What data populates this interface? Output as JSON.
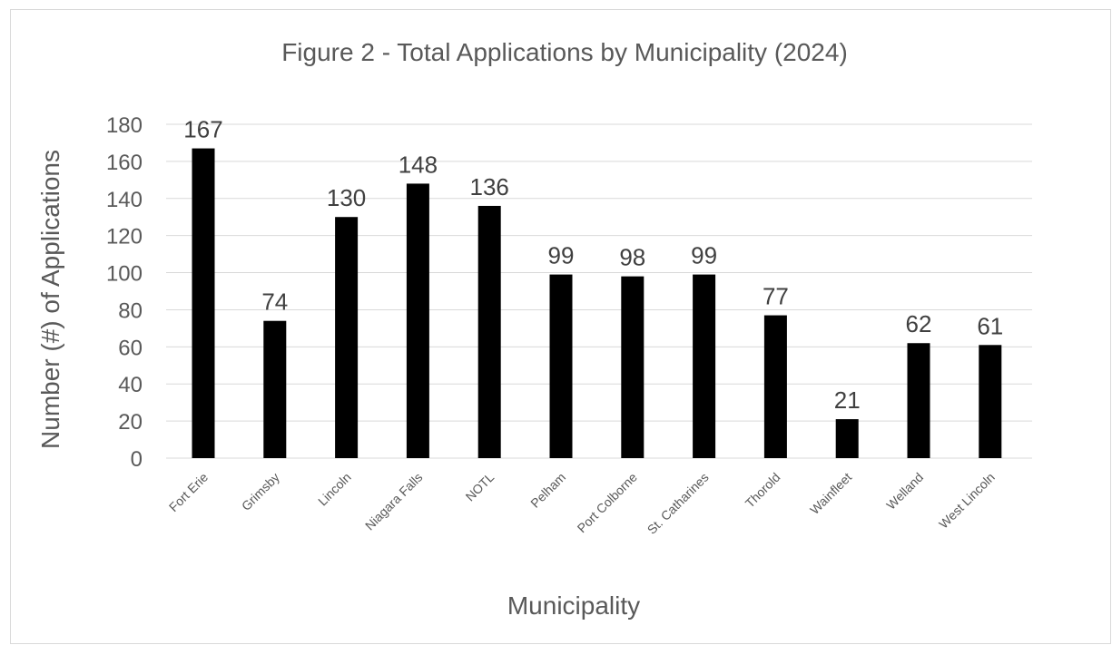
{
  "chart_data": {
    "type": "bar",
    "title": "Figure 2 - Total Applications by Municipality (2024)",
    "xlabel": "Municipality",
    "ylabel": "Number (#) of Applications",
    "categories": [
      "Fort Erie",
      "Grimsby",
      "Lincoln",
      "Niagara Falls",
      "NOTL",
      "Pelham",
      "Port Colborne",
      "St. Catharines",
      "Thorold",
      "Wainfleet",
      "Welland",
      "West Lincoln"
    ],
    "values": [
      167,
      74,
      130,
      148,
      136,
      99,
      98,
      99,
      77,
      21,
      62,
      61
    ],
    "ylim": [
      0,
      180
    ],
    "yticks": [
      0,
      20,
      40,
      60,
      80,
      100,
      120,
      140,
      160,
      180
    ],
    "grid": true,
    "legend": "none",
    "colors": {
      "bar": "#000000",
      "grid": "#d9d9d9",
      "text": "#595959",
      "data_label": "#404040"
    }
  }
}
